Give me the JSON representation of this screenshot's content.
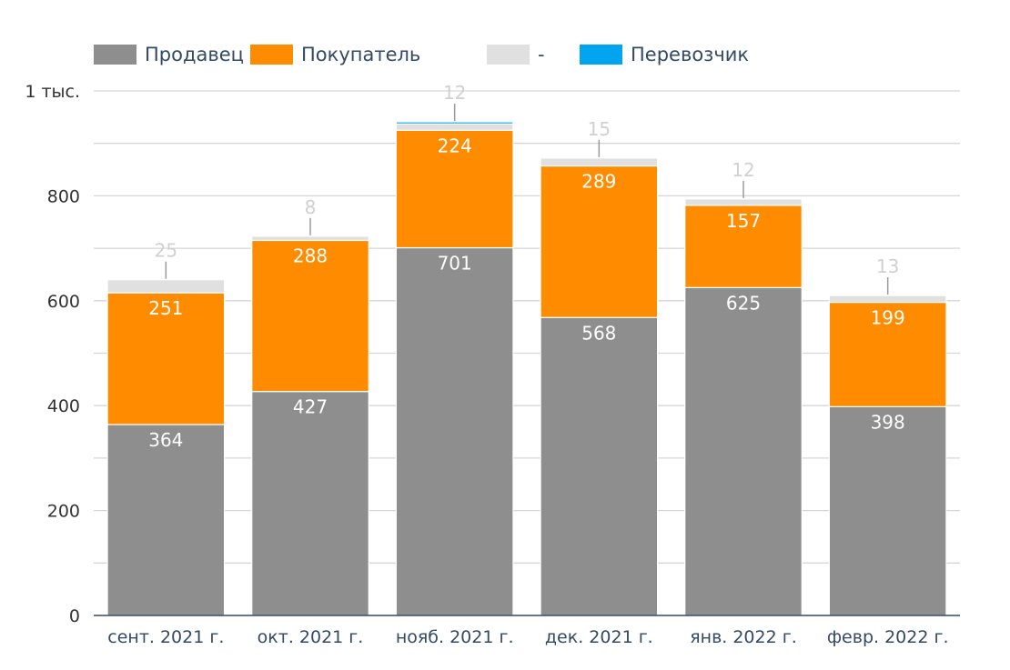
{
  "chart_data": {
    "type": "bar",
    "stacked": true,
    "categories": [
      "сент. 2021 г.",
      "окт. 2021 г.",
      "нояб. 2021 г.",
      "дек. 2021 г.",
      "янв. 2022 г.",
      "февр. 2022 г."
    ],
    "series": [
      {
        "name": "Продавец",
        "color": "#8e8e8e",
        "values": [
          364,
          427,
          701,
          568,
          625,
          398
        ]
      },
      {
        "name": "Покупатель",
        "color": "#ff8c00",
        "values": [
          251,
          288,
          224,
          289,
          157,
          199
        ]
      },
      {
        "name": "-",
        "color": "#e0e0e0",
        "values": [
          25,
          8,
          12,
          15,
          12,
          13
        ]
      },
      {
        "name": "Перевозчик",
        "color": "#00a4ef",
        "values": [
          0,
          0,
          4,
          0,
          0,
          0
        ]
      }
    ],
    "yticks": [
      {
        "value": 0,
        "label": "0"
      },
      {
        "value": 200,
        "label": "200"
      },
      {
        "value": 400,
        "label": "400"
      },
      {
        "value": 600,
        "label": "600"
      },
      {
        "value": 800,
        "label": "800"
      },
      {
        "value": 1000,
        "label": "1 тыс."
      }
    ],
    "ylim": [
      0,
      1000
    ],
    "grid": true,
    "legend_position": "top-left"
  }
}
